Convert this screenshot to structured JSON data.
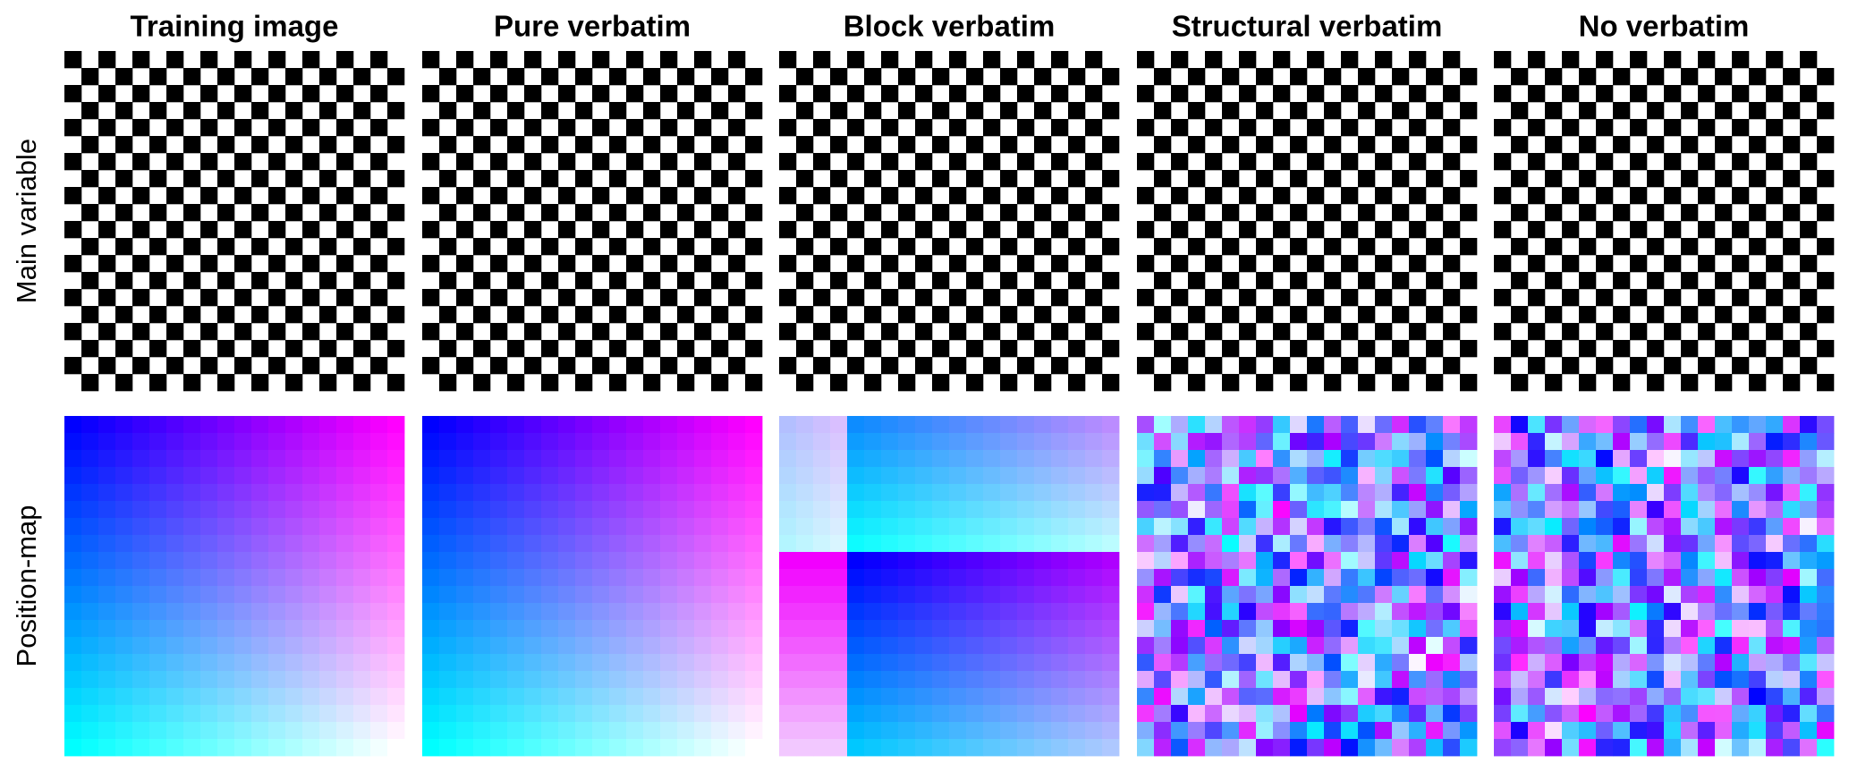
{
  "columns": [
    "Training image",
    "Pure verbatim",
    "Block verbatim",
    "Structural verbatim",
    "No verbatim"
  ],
  "rows": [
    "Main variable",
    "Position-map"
  ]
}
